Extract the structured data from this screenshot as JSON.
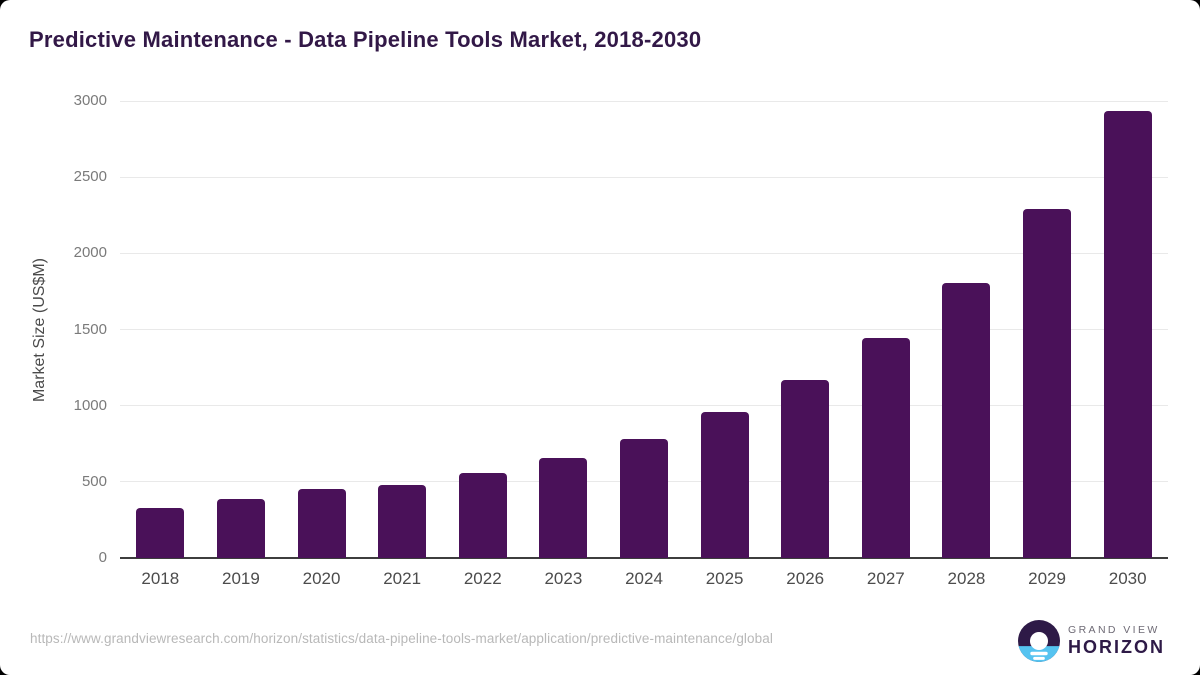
{
  "title": "Predictive Maintenance - Data Pipeline Tools Market, 2018-2030",
  "chart_data": {
    "type": "bar",
    "categories": [
      "2018",
      "2019",
      "2020",
      "2021",
      "2022",
      "2023",
      "2024",
      "2025",
      "2026",
      "2027",
      "2028",
      "2029",
      "2030"
    ],
    "values": [
      330,
      385,
      455,
      480,
      555,
      655,
      780,
      960,
      1170,
      1445,
      1805,
      2290,
      2935
    ],
    "title": "Predictive Maintenance - Data Pipeline Tools Market, 2018-2030",
    "xlabel": "",
    "ylabel": "Market Size (US$M)",
    "ylim": [
      0,
      3000
    ],
    "ytick_step": 500,
    "yticks": [
      "0",
      "500",
      "1000",
      "1500",
      "2000",
      "2500",
      "3000"
    ],
    "grid": true,
    "legend": "none",
    "bar_color": "#4a1159"
  },
  "footer": {
    "source_url": "https://www.grandviewresearch.com/horizon/statistics/data-pipeline-tools-market/application/predictive-maintenance/global",
    "logo": {
      "top_text": "GRAND VIEW",
      "bottom_text": "HORIZON"
    }
  },
  "colors": {
    "bar": "#4a1159",
    "title": "#321847",
    "logo_dark": "#2e1a47",
    "logo_blue": "#55c3f0",
    "gridline": "#e9e9e9",
    "axis_line": "#3d3d3d"
  }
}
